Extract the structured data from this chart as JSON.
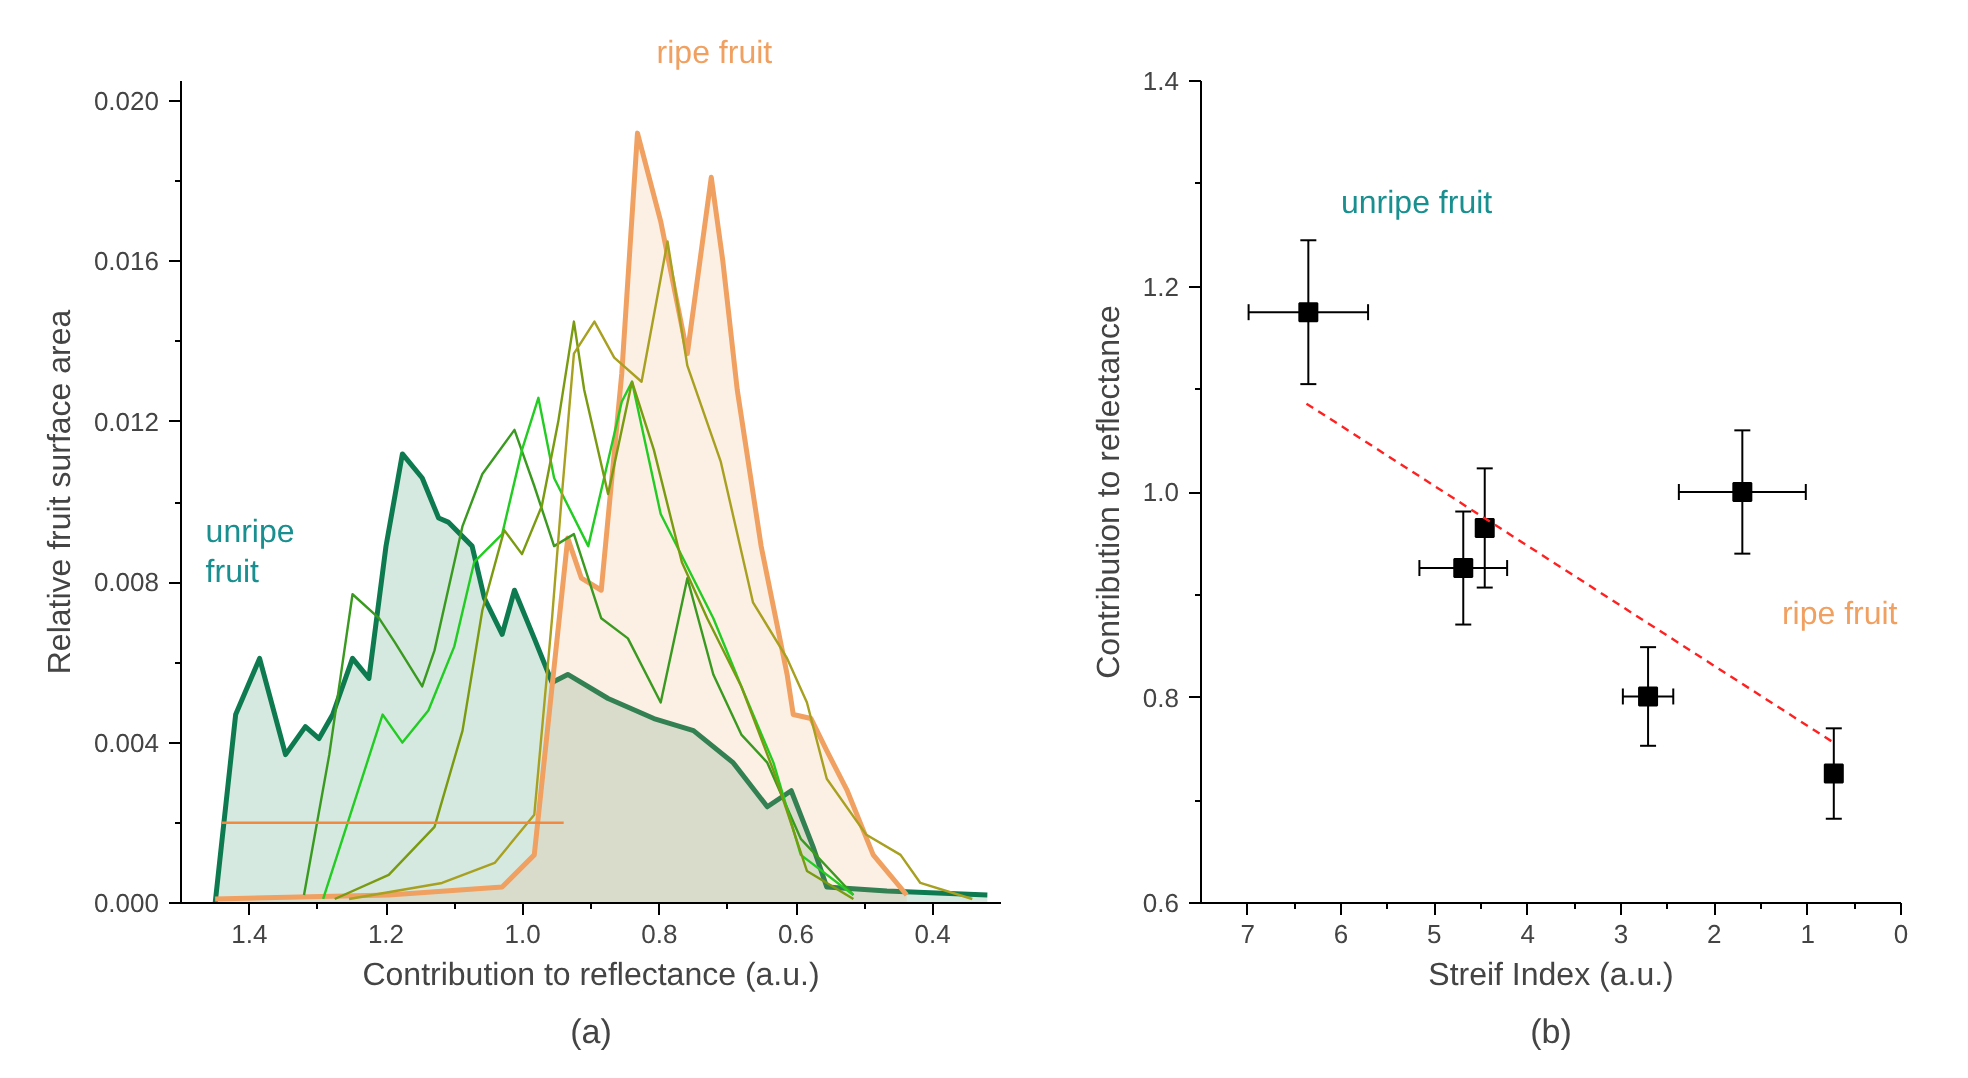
{
  "chart_data": [
    {
      "type": "line",
      "xlabel": "Contribution to reflectance (a.u.)",
      "ylabel": "Relative fruit surface area",
      "xlim": [
        1.5,
        0.3
      ],
      "ylim": [
        0,
        0.0205
      ],
      "xticks": [
        1.4,
        1.2,
        {
          "value": 1,
          "label": "1.0"
        },
        0.8,
        0.6,
        0.4
      ],
      "yticks": [
        {
          "value": 0,
          "label": "0.000"
        },
        {
          "value": 0.004,
          "label": "0.004"
        },
        {
          "value": 0.008,
          "label": "0.008"
        },
        {
          "value": 0.012,
          "label": "0.012"
        },
        {
          "value": 0.016,
          "label": "0.016"
        },
        {
          "value": 0.02,
          "label": "0.020"
        }
      ],
      "grid": false,
      "annotations": [
        "unripe\nfruit",
        "ripe fruit",
        "(a)"
      ],
      "series": [
        {
          "type": "area",
          "color": "#0e7a50",
          "x": [
            1.45,
            1.42,
            1.385,
            1.347,
            1.318,
            1.298,
            1.278,
            1.249,
            1.225,
            1.2,
            1.176,
            1.147,
            1.123,
            1.109,
            1.074,
            1.056,
            1.03,
            1.012,
            0.983,
            0.957,
            0.934,
            0.875,
            0.808,
            0.75,
            0.692,
            0.642,
            0.607,
            0.575,
            0.555,
            0.467,
            0.32
          ],
          "values": [
            0,
            0.0047,
            0.0061,
            0.0037,
            0.0044,
            0.0041,
            0.0047,
            0.0061,
            0.0056,
            0.0089,
            0.0112,
            0.0106,
            0.0096,
            0.0095,
            0.0089,
            0.0076,
            0.0067,
            0.0078,
            0.0066,
            0.0055,
            0.0057,
            0.0051,
            0.0046,
            0.0043,
            0.0035,
            0.0024,
            0.0028,
            0.0014,
            0.0004,
            0.0003,
            0.0002
          ]
        },
        {
          "type": "area",
          "color": "#f0a060",
          "x": [
            1.45,
            1.196,
            1.03,
            0.983,
            0.957,
            0.934,
            0.914,
            0.885,
            0.855,
            0.832,
            0.798,
            0.759,
            0.724,
            0.707,
            0.686,
            0.651,
            0.613,
            0.604,
            0.578,
            0.555,
            0.525,
            0.487,
            0.438
          ],
          "values": [
            0.0001,
            0.0002,
            0.0004,
            0.0012,
            0.0054,
            0.0091,
            0.0081,
            0.0078,
            0.0132,
            0.0192,
            0.017,
            0.0137,
            0.0181,
            0.016,
            0.0128,
            0.0089,
            0.0057,
            0.0047,
            0.0046,
            0.0038,
            0.0028,
            0.0012,
            0.0002
          ]
        },
        {
          "color": "#3a9a20",
          "x": [
            1.32,
            1.283,
            1.249,
            1.21,
            1.187,
            1.147,
            1.129,
            1.088,
            1.059,
            1.012,
            0.983,
            0.954,
            0.925,
            0.885,
            0.846,
            0.798,
            0.759,
            0.721,
            0.68,
            0.642,
            0.593,
            0.516
          ],
          "values": [
            0.0002,
            0.0037,
            0.0077,
            0.0071,
            0.0065,
            0.0054,
            0.0063,
            0.0094,
            0.0107,
            0.0118,
            0.0104,
            0.0089,
            0.0092,
            0.0071,
            0.0066,
            0.005,
            0.0081,
            0.0057,
            0.0042,
            0.0035,
            0.0016,
            0.0002
          ]
        },
        {
          "color": "#22cc22",
          "x": [
            1.292,
            1.205,
            1.176,
            1.138,
            1.1,
            1.071,
            1.03,
            1.001,
            0.977,
            0.954,
            0.904,
            0.855,
            0.84,
            0.798,
            0.721,
            0.68,
            0.633,
            0.593,
            0.516
          ],
          "values": [
            0.0001,
            0.0047,
            0.004,
            0.0048,
            0.0064,
            0.0085,
            0.0092,
            0.0113,
            0.0126,
            0.0106,
            0.0089,
            0.0125,
            0.013,
            0.0097,
            0.0071,
            0.0054,
            0.0035,
            0.0012,
            0.0002
          ]
        },
        {
          "color": "#7a9a10",
          "x": [
            1.275,
            1.196,
            1.129,
            1.088,
            1.059,
            1.027,
            1.001,
            0.972,
            0.948,
            0.925,
            0.91,
            0.875,
            0.84,
            0.808,
            0.767,
            0.73,
            0.68,
            0.633,
            0.584,
            0.516
          ],
          "values": [
            0.0001,
            0.0007,
            0.0019,
            0.0043,
            0.0073,
            0.0093,
            0.0087,
            0.0099,
            0.012,
            0.0145,
            0.0128,
            0.0102,
            0.013,
            0.0113,
            0.0085,
            0.0071,
            0.0054,
            0.0033,
            0.0008,
            0.0001
          ]
        },
        {
          "color": "#a8a020",
          "x": [
            1.254,
            1.118,
            1.041,
            0.983,
            0.957,
            0.943,
            0.925,
            0.895,
            0.866,
            0.826,
            0.788,
            0.759,
            0.71,
            0.663,
            0.613,
            0.584,
            0.555,
            0.497,
            0.447,
            0.418,
            0.342
          ],
          "values": [
            0.0001,
            0.0005,
            0.001,
            0.0022,
            0.0071,
            0.0101,
            0.0137,
            0.0145,
            0.0136,
            0.013,
            0.0165,
            0.0134,
            0.011,
            0.0075,
            0.0061,
            0.005,
            0.0031,
            0.0017,
            0.0012,
            0.0005,
            0.0001
          ]
        },
        {
          "color": "#f08a40",
          "x": [
            1.44,
            0.94
          ],
          "values": [
            0.002,
            0.002
          ]
        }
      ]
    },
    {
      "type": "scatter",
      "xlabel": "Streif Index (a.u.)",
      "ylabel": "Contribution to reflectance",
      "xlim": [
        7.5,
        0
      ],
      "ylim": [
        0.6,
        1.4
      ],
      "xticks": [
        7,
        6,
        5,
        4,
        3,
        2,
        1,
        0
      ],
      "yticks": [
        0.6,
        0.8,
        {
          "value": 1,
          "label": "1.0"
        },
        1.2,
        1.4
      ],
      "grid": false,
      "annotations": [
        "unripe fruit",
        "ripe fruit",
        "(b)"
      ],
      "series": [
        {
          "color": "#000000",
          "marker": "square",
          "x": [
            6.35,
            4.69,
            4.46,
            2.71,
            1.7,
            0.72
          ],
          "values": [
            1.175,
            0.926,
            0.965,
            0.801,
            1.0,
            0.726
          ],
          "errors": [
            0.07,
            0.055,
            0.058,
            0.048,
            0.06,
            0.044
          ],
          "xerrors": [
            0.64,
            0.47,
            null,
            0.27,
            0.68,
            null
          ]
        },
        {
          "type": "line",
          "color": "#ff2020",
          "line_style": "dashed",
          "x": [
            6.37,
            0.72
          ],
          "values": [
            1.086,
            0.756
          ]
        }
      ]
    }
  ]
}
